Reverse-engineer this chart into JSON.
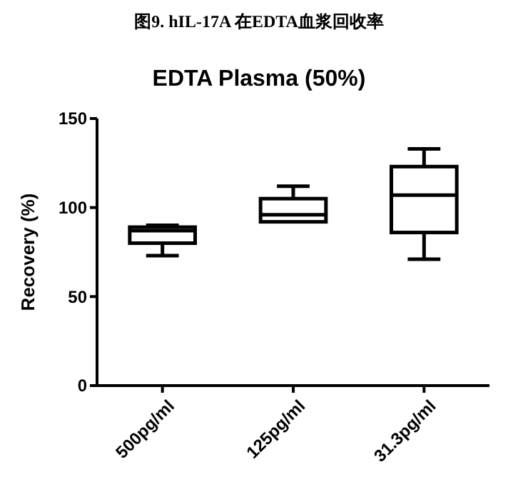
{
  "chart_data": {
    "type": "box",
    "title": "图9.  hIL-17A 在EDTA血浆回收率",
    "subtitle": "EDTA Plasma (50%)",
    "ylabel": "Recovery (%)",
    "categories": [
      "500pg/ml",
      "125pg/ml",
      "31.3pg/ml"
    ],
    "boxes": [
      {
        "low": 73,
        "q1": 80,
        "median": 87,
        "q3": 89,
        "high": 90
      },
      {
        "low": 92,
        "q1": 92,
        "median": 96,
        "q3": 105,
        "high": 112
      },
      {
        "low": 71,
        "q1": 86,
        "median": 107,
        "q3": 123,
        "high": 133
      }
    ],
    "color": "#000000",
    "ylim": [
      0,
      150
    ],
    "yticks": [
      0,
      50,
      100,
      150
    ],
    "grid": false
  }
}
